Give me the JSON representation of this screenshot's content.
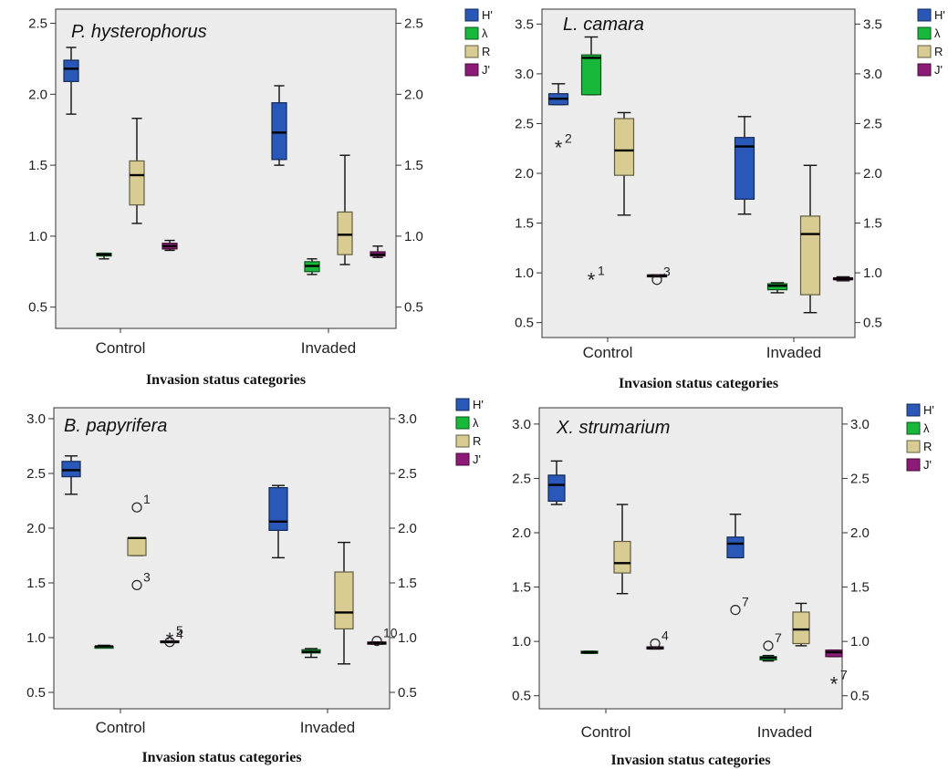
{
  "colors": {
    "H'": "#2a58b8",
    "λ": "#18b83a",
    "R": "#d8cc92",
    "J'": "#8e1a78",
    "plot_bg": "#ececec"
  },
  "legend_labels": [
    "H'",
    "λ",
    "R",
    "J'"
  ],
  "chart_data": [
    {
      "type": "boxplot",
      "title": "P. hysterophorus",
      "xlabel": "Invasion status categories",
      "categories": [
        "Control",
        "Invaded"
      ],
      "ylim": [
        0.35,
        2.6
      ],
      "yticks": [
        "0.5",
        "1.0",
        "1.5",
        "2.0",
        "2.5"
      ],
      "legend_position": "right",
      "series": [
        {
          "name": "H'",
          "boxes": [
            [
              1.86,
              2.09,
              2.18,
              2.24,
              2.33
            ],
            [
              1.5,
              1.54,
              1.73,
              1.94,
              2.06
            ]
          ]
        },
        {
          "name": "λ",
          "boxes": [
            [
              0.84,
              0.86,
              0.87,
              0.88,
              0.88
            ],
            [
              0.73,
              0.75,
              0.79,
              0.82,
              0.84
            ]
          ]
        },
        {
          "name": "R",
          "boxes": [
            [
              1.09,
              1.22,
              1.43,
              1.53,
              1.83
            ],
            [
              0.8,
              0.87,
              1.01,
              1.17,
              1.57
            ]
          ]
        },
        {
          "name": "J'",
          "boxes": [
            [
              0.9,
              0.91,
              0.93,
              0.95,
              0.97
            ],
            [
              0.85,
              0.86,
              0.87,
              0.89,
              0.93
            ]
          ]
        }
      ],
      "outliers": []
    },
    {
      "type": "boxplot",
      "title": "L. camara",
      "xlabel": "Invasion status categories",
      "categories": [
        "Control",
        "Invaded"
      ],
      "ylim": [
        0.35,
        3.65
      ],
      "yticks": [
        "0.5",
        "1.0",
        "1.5",
        "2.0",
        "2.5",
        "3.0",
        "3.5"
      ],
      "legend_position": "right",
      "series": [
        {
          "name": "H'",
          "boxes": [
            [
              2.69,
              2.69,
              2.75,
              2.8,
              2.9
            ],
            [
              1.59,
              1.74,
              2.27,
              2.36,
              2.57
            ]
          ]
        },
        {
          "name": "λ",
          "boxes": [
            [
              2.79,
              2.79,
              3.16,
              3.19,
              3.37
            ],
            [
              0.8,
              0.83,
              0.87,
              0.89,
              0.9
            ]
          ]
        },
        {
          "name": "R",
          "boxes": [
            [
              1.58,
              1.98,
              2.23,
              2.55,
              2.61
            ],
            [
              0.6,
              0.78,
              1.39,
              1.57,
              2.08
            ]
          ]
        },
        {
          "name": "J'",
          "boxes": [
            [
              0.96,
              0.96,
              0.97,
              0.98,
              0.98
            ],
            [
              0.92,
              0.93,
              0.94,
              0.95,
              0.96
            ]
          ]
        }
      ],
      "outliers": [
        {
          "series": "H'",
          "category": "Control",
          "value": 2.27,
          "marker": "*",
          "label": "2"
        },
        {
          "series": "λ",
          "category": "Control",
          "value": 0.94,
          "marker": "*",
          "label": "1"
        },
        {
          "series": "J'",
          "category": "Control",
          "value": 0.93,
          "marker": "o",
          "label": "3"
        }
      ]
    },
    {
      "type": "boxplot",
      "title": "B. papyrifera",
      "xlabel": "Invasion status categories",
      "categories": [
        "Control",
        "Invaded"
      ],
      "ylim": [
        0.35,
        3.1
      ],
      "yticks": [
        "0.5",
        "1.0",
        "1.5",
        "2.0",
        "2.5",
        "3.0"
      ],
      "legend_position": "right",
      "series": [
        {
          "name": "H'",
          "boxes": [
            [
              2.31,
              2.47,
              2.53,
              2.61,
              2.66
            ],
            [
              1.73,
              1.98,
              2.06,
              2.37,
              2.39
            ]
          ]
        },
        {
          "name": "λ",
          "boxes": [
            [
              0.91,
              0.91,
              0.92,
              0.92,
              0.93
            ],
            [
              0.82,
              0.86,
              0.87,
              0.89,
              0.9
            ]
          ]
        },
        {
          "name": "R",
          "boxes": [
            [
              1.75,
              1.75,
              1.91,
              1.91,
              1.91
            ],
            [
              0.76,
              1.08,
              1.23,
              1.6,
              1.87
            ]
          ]
        },
        {
          "name": "J'",
          "boxes": [
            [
              0.96,
              0.96,
              0.96,
              0.97,
              0.97
            ],
            [
              0.94,
              0.94,
              0.95,
              0.96,
              0.96
            ]
          ]
        }
      ],
      "outliers": [
        {
          "series": "R",
          "category": "Control",
          "value": 2.19,
          "marker": "o",
          "label": "1"
        },
        {
          "series": "R",
          "category": "Control",
          "value": 1.48,
          "marker": "o",
          "label": "3"
        },
        {
          "series": "J'",
          "category": "Control",
          "value": 0.99,
          "marker": "*",
          "label": "5"
        },
        {
          "series": "J'",
          "category": "Control",
          "value": 0.96,
          "marker": "o",
          "label": "4"
        },
        {
          "series": "J'",
          "category": "Invaded",
          "value": 0.97,
          "marker": "o",
          "label": "10"
        }
      ]
    },
    {
      "type": "boxplot",
      "title": "X. strumarium",
      "xlabel": "Invasion status categories",
      "categories": [
        "Control",
        "Invaded"
      ],
      "ylim": [
        0.38,
        3.15
      ],
      "yticks": [
        "0.5",
        "1.0",
        "1.5",
        "2.0",
        "2.5",
        "3.0"
      ],
      "legend_position": "right",
      "series": [
        {
          "name": "H'",
          "boxes": [
            [
              2.26,
              2.29,
              2.44,
              2.53,
              2.66
            ],
            [
              1.77,
              1.77,
              1.9,
              1.96,
              2.17
            ]
          ]
        },
        {
          "name": "λ",
          "boxes": [
            [
              0.89,
              0.89,
              0.9,
              0.91,
              0.91
            ],
            [
              0.82,
              0.83,
              0.85,
              0.86,
              0.87
            ]
          ]
        },
        {
          "name": "R",
          "boxes": [
            [
              1.44,
              1.63,
              1.72,
              1.92,
              2.26
            ],
            [
              0.96,
              0.98,
              1.11,
              1.27,
              1.35
            ]
          ]
        },
        {
          "name": "J'",
          "boxes": [
            [
              0.93,
              0.93,
              0.94,
              0.95,
              0.95
            ],
            [
              0.86,
              0.86,
              0.9,
              0.92,
              0.92
            ]
          ]
        }
      ],
      "outliers": [
        {
          "series": "J'",
          "category": "Control",
          "value": 0.98,
          "marker": "o",
          "label": "4"
        },
        {
          "series": "H'",
          "category": "Invaded",
          "value": 1.29,
          "marker": "o",
          "label": "7"
        },
        {
          "series": "λ",
          "category": "Invaded",
          "value": 0.96,
          "marker": "o",
          "label": "7"
        },
        {
          "series": "J'",
          "category": "Invaded",
          "value": 0.62,
          "marker": "*",
          "label": "7"
        }
      ]
    }
  ]
}
